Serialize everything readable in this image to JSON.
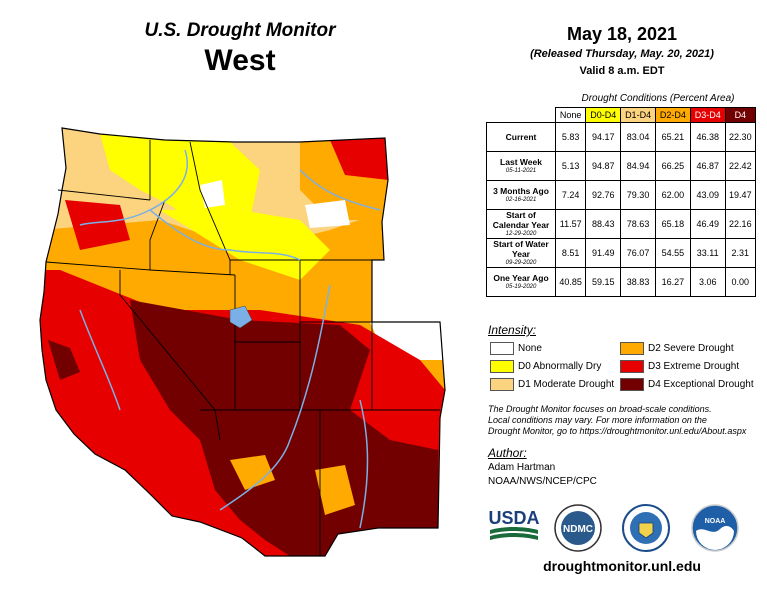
{
  "header": {
    "title": "U.S. Drought Monitor",
    "region": "West"
  },
  "release": {
    "date": "May 18, 2021",
    "released": "(Released Thursday, May. 20, 2021)",
    "valid": "Valid 8 a.m. EDT"
  },
  "table": {
    "caption": "Drought Conditions (Percent Area)",
    "columns": [
      {
        "label": "None",
        "color": "#ffffff"
      },
      {
        "label": "D0-D4",
        "color": "#ffff00"
      },
      {
        "label": "D1-D4",
        "color": "#fcd37f"
      },
      {
        "label": "D2-D4",
        "color": "#ffaa00"
      },
      {
        "label": "D3-D4",
        "color": "#e60000"
      },
      {
        "label": "D4",
        "color": "#730000"
      }
    ],
    "rows": [
      {
        "label": "Current",
        "date": "",
        "values": [
          "5.83",
          "94.17",
          "83.04",
          "65.21",
          "46.38",
          "22.30"
        ]
      },
      {
        "label": "Last Week",
        "date": "05-11-2021",
        "values": [
          "5.13",
          "94.87",
          "84.94",
          "66.25",
          "46.87",
          "22.42"
        ]
      },
      {
        "label": "3 Months Ago",
        "date": "02-16-2021",
        "values": [
          "7.24",
          "92.76",
          "79.30",
          "62.00",
          "43.09",
          "19.47"
        ]
      },
      {
        "label": "Start of Calendar Year",
        "date": "12-29-2020",
        "values": [
          "11.57",
          "88.43",
          "78.63",
          "65.18",
          "46.49",
          "22.16"
        ]
      },
      {
        "label": "Start of Water Year",
        "date": "09-29-2020",
        "values": [
          "8.51",
          "91.49",
          "76.07",
          "54.55",
          "33.11",
          "2.31"
        ]
      },
      {
        "label": "One Year Ago",
        "date": "05-19-2020",
        "values": [
          "40.85",
          "59.15",
          "38.83",
          "16.27",
          "3.06",
          "0.00"
        ]
      }
    ]
  },
  "legend": {
    "title": "Intensity:",
    "items": [
      {
        "label": "None",
        "color": "#ffffff"
      },
      {
        "label": "D0 Abnormally Dry",
        "color": "#ffff00"
      },
      {
        "label": "D1 Moderate Drought",
        "color": "#fcd37f"
      },
      {
        "label": "D2 Severe Drought",
        "color": "#ffaa00"
      },
      {
        "label": "D3 Extreme Drought",
        "color": "#e60000"
      },
      {
        "label": "D4 Exceptional Drought",
        "color": "#730000"
      }
    ]
  },
  "note": {
    "line1": "The Drought Monitor focuses on broad-scale conditions.",
    "line2": "Local conditions may vary. For more information on the",
    "line3": "Drought Monitor, go to https://droughtmonitor.unl.edu/About.aspx"
  },
  "author": {
    "heading": "Author:",
    "name": "Adam Hartman",
    "org": "NOAA/NWS/NCEP/CPC"
  },
  "logos": {
    "usda": "USDA",
    "ndmc": "NDMC",
    "noaa": "NOAA"
  },
  "footer": {
    "url": "droughtmonitor.unl.edu"
  },
  "colors": {
    "water": "#7ab0e6",
    "border": "#000000"
  }
}
